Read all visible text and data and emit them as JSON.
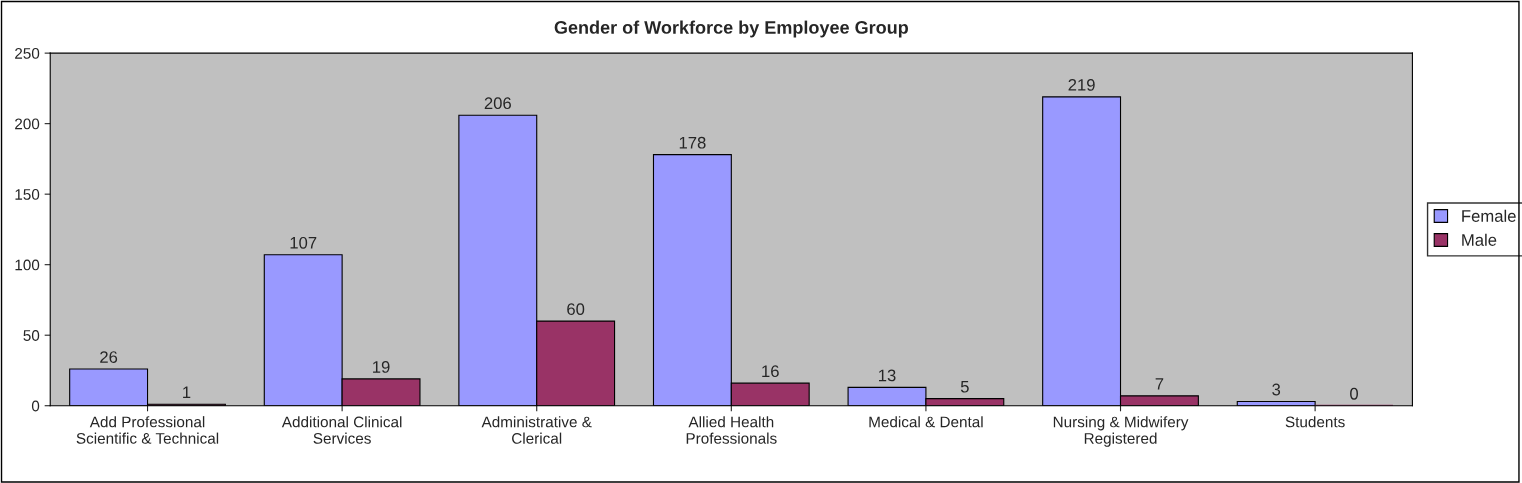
{
  "chart_data": {
    "type": "bar",
    "title": "Gender of Workforce by Employee Group",
    "categories": [
      "Add Professional\nScientific & Technical",
      "Additional Clinical\nServices",
      "Administrative &\nClerical",
      "Allied Health\nProfessionals",
      "Medical & Dental",
      "Nursing & Midwifery\nRegistered",
      "Students"
    ],
    "series": [
      {
        "name": "Female",
        "color": "#9999ff",
        "values": [
          26,
          107,
          206,
          178,
          13,
          219,
          3
        ]
      },
      {
        "name": "Male",
        "color": "#993366",
        "values": [
          1,
          19,
          60,
          16,
          5,
          7,
          0
        ]
      }
    ],
    "ylim": [
      0,
      250
    ],
    "yticks": [
      0,
      50,
      100,
      150,
      200,
      250
    ],
    "grid": false,
    "legend": "right",
    "data_labels": true
  }
}
